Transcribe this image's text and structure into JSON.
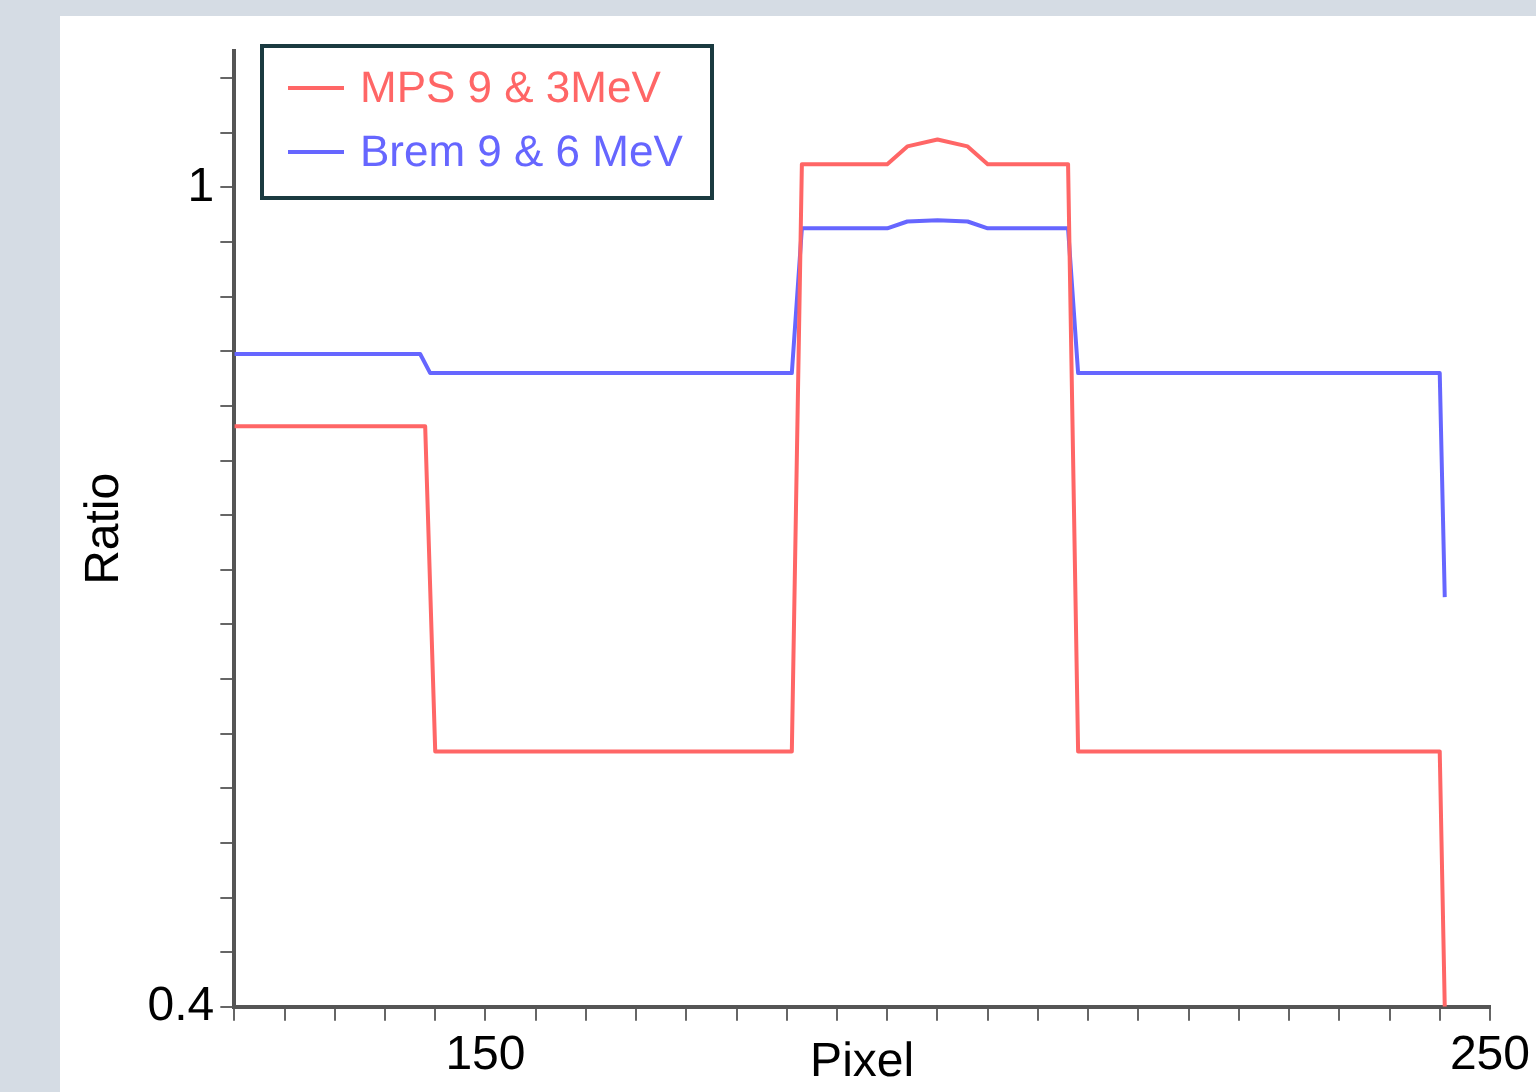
{
  "chart_data": {
    "type": "line",
    "xlabel": "Pixel",
    "ylabel": "Ratio",
    "xlim": [
      125,
      250
    ],
    "ylim": [
      0.4,
      1.1
    ],
    "xticks": [
      {
        "value": 125,
        "label": null
      },
      {
        "value": 130,
        "label": null
      },
      {
        "value": 135,
        "label": null
      },
      {
        "value": 140,
        "label": null
      },
      {
        "value": 145,
        "label": null
      },
      150,
      {
        "value": 155,
        "label": null
      },
      {
        "value": 160,
        "label": null
      },
      {
        "value": 165,
        "label": null
      },
      {
        "value": 170,
        "label": null
      },
      {
        "value": 175,
        "label": null
      },
      {
        "value": 180,
        "label": null
      },
      {
        "value": 185,
        "label": null
      },
      {
        "value": 190,
        "label": null
      },
      {
        "value": 195,
        "label": null
      },
      {
        "value": 200,
        "label": null
      },
      {
        "value": 205,
        "label": null
      },
      {
        "value": 210,
        "label": null
      },
      {
        "value": 215,
        "label": null
      },
      {
        "value": 220,
        "label": null
      },
      {
        "value": 225,
        "label": null
      },
      {
        "value": 230,
        "label": null
      },
      {
        "value": 235,
        "label": null
      },
      {
        "value": 240,
        "label": null
      },
      {
        "value": 245,
        "label": null
      },
      250
    ],
    "yticks": [
      0.4,
      {
        "value": 0.44,
        "label": null
      },
      {
        "value": 0.48,
        "label": null
      },
      {
        "value": 0.52,
        "label": null
      },
      {
        "value": 0.56,
        "label": null
      },
      {
        "value": 0.6,
        "label": null
      },
      {
        "value": 0.64,
        "label": null
      },
      {
        "value": 0.68,
        "label": null
      },
      {
        "value": 0.72,
        "label": null
      },
      {
        "value": 0.76,
        "label": null
      },
      {
        "value": 0.8,
        "label": null
      },
      {
        "value": 0.84,
        "label": null
      },
      {
        "value": 0.88,
        "label": null
      },
      {
        "value": 0.92,
        "label": null
      },
      {
        "value": 0.96,
        "label": null
      },
      1,
      {
        "value": 1.04,
        "label": null
      },
      {
        "value": 1.08,
        "label": null
      }
    ],
    "grid": false,
    "legend": "top left",
    "marker": "none",
    "line_style": "solid",
    "series": [
      {
        "name": "MPS 9 & 3MeV",
        "color": "#ff6666",
        "x": [
          125,
          144,
          145,
          180.5,
          181.5,
          190,
          192,
          195,
          198,
          200,
          208,
          209,
          245,
          245.5
        ],
        "values": [
          0.825,
          0.825,
          0.587,
          0.587,
          1.017,
          1.017,
          1.03,
          1.035,
          1.03,
          1.017,
          1.017,
          0.587,
          0.587,
          0.4
        ]
      },
      {
        "name": "Brem 9 & 6 MeV",
        "color": "#6666ff",
        "x": [
          125,
          143.5,
          144.5,
          180.5,
          181.5,
          190,
          192,
          195,
          198,
          200,
          208,
          209,
          245,
          245.5
        ],
        "values": [
          0.878,
          0.878,
          0.864,
          0.864,
          0.97,
          0.97,
          0.975,
          0.976,
          0.975,
          0.97,
          0.97,
          0.864,
          0.864,
          0.7
        ]
      }
    ]
  }
}
